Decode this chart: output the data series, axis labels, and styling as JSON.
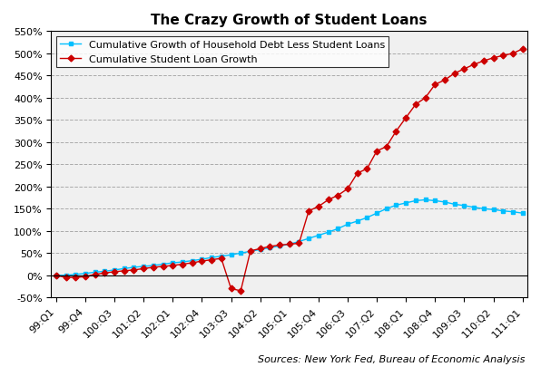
{
  "title": "The Crazy Growth of Student Loans",
  "subtitle": "Sources: New York Fed, Bureau of Economic Analysis",
  "line1_label": "Cumulative Growth of Household Debt Less Student Loans",
  "line2_label": "Cumulative Student Loan Growth",
  "line1_color": "#00BFFF",
  "line2_color": "#CC0000",
  "line1_marker": "s",
  "line2_marker": "D",
  "household_debt": [
    0,
    0,
    2,
    4,
    7,
    9,
    12,
    15,
    18,
    20,
    22,
    25,
    28,
    30,
    33,
    36,
    40,
    43,
    46,
    50,
    54,
    58,
    62,
    66,
    70,
    76,
    83,
    90,
    97,
    105,
    115,
    122,
    130,
    140,
    150,
    158,
    163,
    168,
    170,
    168,
    165,
    160,
    157,
    153,
    150,
    148,
    145,
    143,
    140
  ],
  "student_loans": [
    0,
    -5,
    -5,
    -3,
    2,
    5,
    8,
    10,
    12,
    15,
    18,
    20,
    22,
    25,
    28,
    32,
    35,
    38,
    -30,
    -35,
    55,
    60,
    65,
    68,
    70,
    72,
    145,
    155,
    170,
    180,
    195,
    230,
    240,
    280,
    290,
    325,
    355,
    385,
    400,
    430,
    440,
    455,
    465,
    475,
    483,
    490,
    495,
    500,
    510
  ],
  "ylim": [
    -50,
    550
  ],
  "yticks": [
    -50,
    0,
    50,
    100,
    150,
    200,
    250,
    300,
    350,
    400,
    450,
    500,
    550
  ],
  "background_color": "#FFFFFF",
  "plot_bg_color": "#F0F0F0",
  "grid_color": "#AAAAAA",
  "legend_fontsize": 8,
  "title_fontsize": 11,
  "tick_fontsize": 8,
  "source_fontsize": 8
}
